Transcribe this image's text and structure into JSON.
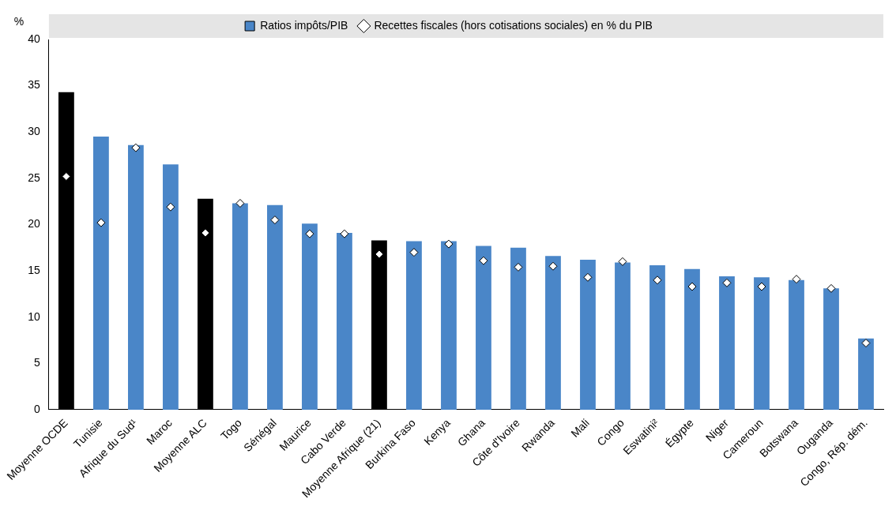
{
  "chart_data": {
    "type": "bar",
    "ylabel": "%",
    "categories": [
      "Moyenne OCDE",
      "Tunisie",
      "Afrique du Sud¹",
      "Maroc",
      "Moyenne ALC",
      "Togo",
      "Sénégal",
      "Maurice",
      "Cabo Verde",
      "Moyenne Afrique (21)",
      "Burkina Faso",
      "Kenya",
      "Ghana",
      "Côte d'Ivoire",
      "Rwanda",
      "Mali",
      "Congo",
      "Eswatini²",
      "Égypte",
      "Niger",
      "Cameroun",
      "Botswana",
      "Ouganda",
      "Congo, Rép. dém."
    ],
    "series": [
      {
        "name": "Ratios impôts/PIB",
        "color": "#4a86c8",
        "colors": [
          "#000000",
          "#4a86c8",
          "#4a86c8",
          "#4a86c8",
          "#000000",
          "#4a86c8",
          "#4a86c8",
          "#4a86c8",
          "#4a86c8",
          "#000000",
          "#4a86c8",
          "#4a86c8",
          "#4a86c8",
          "#4a86c8",
          "#4a86c8",
          "#4a86c8",
          "#4a86c8",
          "#4a86c8",
          "#4a86c8",
          "#4a86c8",
          "#4a86c8",
          "#4a86c8",
          "#4a86c8",
          "#4a86c8"
        ],
        "values": [
          34.3,
          29.5,
          28.6,
          26.5,
          22.8,
          22.3,
          22.1,
          20.1,
          19.1,
          18.3,
          18.2,
          18.2,
          17.7,
          17.5,
          16.6,
          16.2,
          15.9,
          15.6,
          15.2,
          14.4,
          14.3,
          14.0,
          13.1,
          7.7
        ]
      },
      {
        "name": "Recettes fiscales (hors cotisations sociales) en % du PIB",
        "type": "scatter",
        "marker": "diamond",
        "color": "#ffffff",
        "x": [
          "Moyenne OCDE",
          "Tunisie",
          "Afrique du Sud¹",
          "Maroc",
          "Moyenne ALC",
          "Togo",
          "Sénégal",
          "Maurice",
          "Cabo Verde",
          "Moyenne Afrique (21)",
          "Burkina Faso",
          "Kenya",
          "Ghana",
          "Côte d'Ivoire",
          "Rwanda",
          "Mali",
          "Congo",
          "Eswatini²",
          "Égypte",
          "Niger",
          "Cameroun",
          "Botswana",
          "Ouganda",
          "Congo, Rép. dém."
        ],
        "values": [
          25.2,
          20.2,
          28.3,
          21.9,
          19.1,
          22.3,
          20.5,
          19.0,
          19.0,
          16.8,
          17.0,
          17.9,
          16.1,
          15.4,
          15.5,
          14.3,
          16.0,
          14.0,
          13.3,
          13.7,
          13.3,
          14.1,
          13.1,
          7.2
        ]
      }
    ],
    "ylim": [
      0,
      40
    ],
    "yticks": [
      0,
      5,
      10,
      15,
      20,
      25,
      30,
      35,
      40
    ],
    "grid": false,
    "legend": "top"
  }
}
